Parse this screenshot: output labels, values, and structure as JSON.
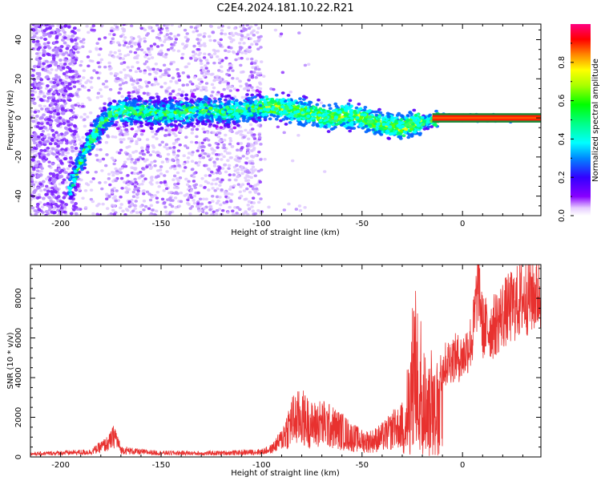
{
  "title": "C2E4.2024.181.10.22.R21",
  "chart_data": [
    {
      "type": "scatter",
      "xlabel": "Height of straight line (km)",
      "ylabel": "Frequency (Hz)",
      "xlim": [
        -215,
        39
      ],
      "ylim": [
        -50,
        48
      ],
      "xticks": [
        -200,
        -150,
        -100,
        -50,
        0
      ],
      "yticks": [
        -40,
        -20,
        0,
        20,
        40
      ],
      "colorbar": {
        "label": "Normalized spectral amplitude",
        "ticks": [
          0.0,
          0.2,
          0.4,
          0.6,
          0.8
        ],
        "range": [
          0,
          1
        ]
      },
      "ridge": {
        "x": [
          -195,
          -190,
          -185,
          -180,
          -175,
          -170,
          -160,
          -150,
          -140,
          -130,
          -120,
          -110,
          -100,
          -95,
          -90,
          -85,
          -80,
          -75,
          -70,
          -65,
          -60,
          -55,
          -50,
          -45,
          -40,
          -35,
          -30,
          -25,
          -20,
          -15,
          -10,
          -5,
          0,
          5,
          10,
          20,
          30,
          39
        ],
        "y": [
          -35,
          -22,
          -12,
          -3,
          2,
          4,
          3,
          2,
          3,
          4,
          3,
          4,
          5,
          6,
          5,
          4,
          3,
          2,
          1,
          0,
          1,
          1,
          0,
          -2,
          -3,
          -4,
          -5,
          -3,
          -2,
          -1,
          0,
          0,
          0,
          0,
          0,
          0,
          0,
          0
        ]
      }
    },
    {
      "type": "line",
      "xlabel": "Height of straight line (km)",
      "ylabel": "SNR (10 * v/v)",
      "xlim": [
        -215,
        39
      ],
      "ylim": [
        0,
        9700
      ],
      "xticks": [
        -200,
        -150,
        -100,
        -50,
        0
      ],
      "yticks": [
        0,
        2000,
        4000,
        6000,
        8000
      ],
      "color": "#e8312f",
      "series": [
        {
          "x": [
            -215,
            -200,
            -185,
            -176,
            -173,
            -170,
            -160,
            -150,
            -140,
            -130,
            -120,
            -110,
            -100,
            -95,
            -90,
            -85,
            -80,
            -75,
            -70,
            -65,
            -60,
            -55,
            -50,
            -45,
            -40,
            -35,
            -30,
            -27,
            -25,
            -22,
            -20,
            -15,
            -10,
            -5,
            0,
            5,
            8,
            10,
            15,
            20,
            25,
            30,
            35,
            39
          ],
          "y": [
            150,
            200,
            250,
            700,
            1100,
            350,
            250,
            200,
            200,
            180,
            200,
            220,
            260,
            400,
            900,
            1800,
            2000,
            1600,
            1700,
            1500,
            1300,
            1000,
            800,
            800,
            1000,
            1300,
            1600,
            2500,
            4500,
            5500,
            3000,
            3200,
            4500,
            5000,
            5000,
            6000,
            9000,
            6500,
            6500,
            7200,
            7600,
            8000,
            8200,
            8300
          ]
        }
      ]
    }
  ]
}
